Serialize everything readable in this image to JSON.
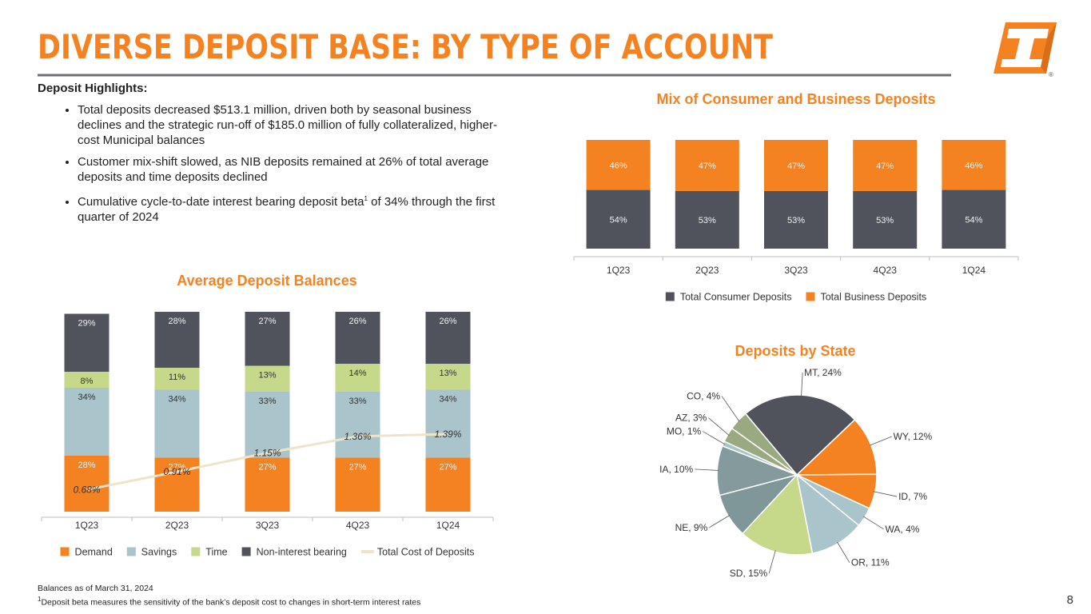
{
  "header": {
    "title": "DIVERSE DEPOSIT BASE: BY TYPE OF ACCOUNT"
  },
  "logo": {
    "mark": "®"
  },
  "highlights": {
    "heading": "Deposit Highlights:",
    "bullets": [
      "Total deposits decreased $513.1 million, driven both by seasonal business declines and the strategic run-off of $185.0 million of fully collateralized, higher-cost Municipal balances",
      "Customer mix-shift slowed, as NIB deposits remained at 26% of total average deposits and time deposits declined",
      {
        "text": "Cumulative cycle-to-date interest bearing deposit beta",
        "sup": "1",
        "tail": " of 34% through the first quarter of 2024"
      }
    ]
  },
  "chart_data": [
    {
      "type": "bar",
      "stacked": true,
      "title": "Average Deposit Balances",
      "categories": [
        "1Q23",
        "2Q23",
        "3Q23",
        "4Q23",
        "1Q24"
      ],
      "ylim": [
        0,
        100
      ],
      "y2lim": [
        0.4,
        2.95
      ],
      "series": [
        {
          "name": "Demand",
          "color": "#f58220",
          "values": [
            28,
            27,
            27,
            27,
            27
          ],
          "value_labels": [
            "28%",
            "27%",
            "27%",
            "27%",
            "27%"
          ]
        },
        {
          "name": "Savings",
          "color": "#a9c4cb",
          "values": [
            34,
            34,
            33,
            33,
            34
          ],
          "value_labels": [
            "34%",
            "34%",
            "33%",
            "33%",
            "34%"
          ]
        },
        {
          "name": "Time",
          "color": "#c6d98a",
          "values": [
            8,
            11,
            13,
            14,
            13
          ],
          "value_labels": [
            "8%",
            "11%",
            "13%",
            "14%",
            "13%"
          ]
        },
        {
          "name": "Non-interest bearing",
          "color": "#50535c",
          "values": [
            29,
            28,
            27,
            26,
            26
          ],
          "value_labels": [
            "29%",
            "28%",
            "27%",
            "26%",
            "26%"
          ]
        },
        {
          "name": "Total Cost of Deposits",
          "type": "line",
          "axis": "y2",
          "color": "#ede4c9",
          "values": [
            0.68,
            0.91,
            1.15,
            1.36,
            1.39
          ],
          "value_labels": [
            "0.68%",
            "0.91%",
            "1.15%",
            "1.36%",
            "1.39%"
          ]
        }
      ]
    },
    {
      "type": "bar",
      "stacked": true,
      "title": "Mix of Consumer and Business Deposits",
      "categories": [
        "1Q23",
        "2Q23",
        "3Q23",
        "4Q23",
        "1Q24"
      ],
      "ylim": [
        0,
        100
      ],
      "series": [
        {
          "name": "Total Consumer Deposits",
          "color": "#50535c",
          "values": [
            54,
            53,
            53,
            53,
            54
          ],
          "value_labels": [
            "54%",
            "53%",
            "53%",
            "53%",
            "54%"
          ]
        },
        {
          "name": "Total Business Deposits",
          "color": "#f58220",
          "values": [
            46,
            47,
            47,
            47,
            46
          ],
          "value_labels": [
            "46%",
            "47%",
            "47%",
            "47%",
            "46%"
          ]
        }
      ]
    },
    {
      "type": "pie",
      "title": "Deposits by State",
      "labels": [
        "MT, 24%",
        "WY, 12%",
        "ID, 7%",
        "WA, 4%",
        "OR, 11%",
        "SD, 15%",
        "NE, 9%",
        "IA, 10%",
        "MO, 1%",
        "AZ, 3%",
        "CO, 4%"
      ],
      "values": [
        24,
        12,
        7,
        4,
        11,
        15,
        9,
        10,
        1,
        3,
        4
      ],
      "colors": [
        "#50535c",
        "#f58220",
        "#f58220",
        "#a9c4cb",
        "#a9c4cb",
        "#c6d98a",
        "#7f9799",
        "#859a9c",
        "#a9c4cb",
        "#9aaa80",
        "#9aaa80"
      ]
    }
  ],
  "footer": {
    "note": "Balances as of March 31, 2024",
    "footnote": {
      "sup": "1",
      "text": "Deposit beta measures the sensitivity of the bank’s deposit cost to changes in short-term interest rates"
    },
    "page": "8"
  }
}
